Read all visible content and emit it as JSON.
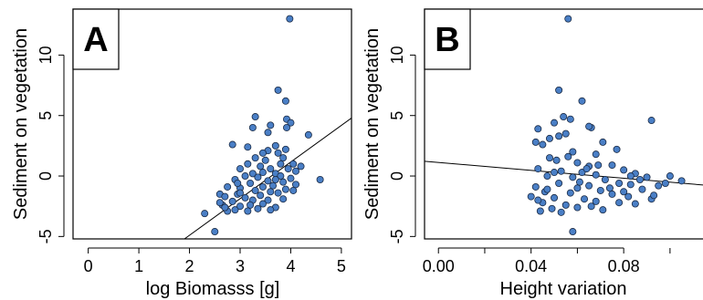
{
  "chart_data": [
    {
      "type": "scatter",
      "panel_label": "A",
      "xlabel": "log Biomasss [g]",
      "ylabel": "Sediment on vegetation",
      "xlim": [
        -0.3,
        5.2
      ],
      "ylim": [
        -5.2,
        13.8
      ],
      "xticks": [
        0,
        1,
        2,
        3,
        4,
        5
      ],
      "yticks": [
        -5,
        0,
        5,
        10
      ],
      "xtick_labels": [
        "0",
        "1",
        "2",
        "3",
        "4",
        "5"
      ],
      "ytick_labels": [
        "-5",
        "0",
        "5",
        "10"
      ],
      "regression_line": {
        "slope": 3.03,
        "intercept": -10.96
      },
      "point_color": "#4a7fc6",
      "points": [
        [
          3.98,
          13.0
        ],
        [
          3.75,
          7.1
        ],
        [
          3.9,
          6.2
        ],
        [
          3.3,
          4.9
        ],
        [
          3.92,
          4.7
        ],
        [
          4.0,
          4.4
        ],
        [
          3.92,
          4.0
        ],
        [
          3.25,
          4.0
        ],
        [
          3.6,
          4.2
        ],
        [
          3.55,
          3.6
        ],
        [
          4.35,
          3.4
        ],
        [
          2.85,
          2.6
        ],
        [
          3.15,
          2.4
        ],
        [
          3.7,
          2.5
        ],
        [
          3.9,
          2.2
        ],
        [
          3.55,
          2.1
        ],
        [
          3.75,
          1.9
        ],
        [
          3.3,
          1.5
        ],
        [
          3.5,
          1.3
        ],
        [
          3.85,
          1.5
        ],
        [
          4.05,
          1.0
        ],
        [
          3.15,
          1.0
        ],
        [
          3.4,
          0.8
        ],
        [
          3.6,
          0.6
        ],
        [
          3.0,
          0.6
        ],
        [
          3.95,
          0.6
        ],
        [
          4.1,
          0.4
        ],
        [
          3.25,
          0.2
        ],
        [
          3.45,
          0.3
        ],
        [
          3.7,
          0.2
        ],
        [
          3.8,
          0.0
        ],
        [
          4.0,
          -0.2
        ],
        [
          4.58,
          -0.3
        ],
        [
          3.1,
          0.0
        ],
        [
          3.35,
          -0.1
        ],
        [
          3.55,
          -0.4
        ],
        [
          2.9,
          -0.3
        ],
        [
          3.85,
          -0.5
        ],
        [
          4.1,
          -0.7
        ],
        [
          3.2,
          -0.6
        ],
        [
          3.65,
          -0.8
        ],
        [
          3.45,
          -0.9
        ],
        [
          2.75,
          -0.9
        ],
        [
          3.0,
          -1.0
        ],
        [
          3.9,
          -1.1
        ],
        [
          4.05,
          -1.2
        ],
        [
          3.3,
          -1.2
        ],
        [
          3.6,
          -1.3
        ],
        [
          2.6,
          -1.5
        ],
        [
          2.95,
          -1.5
        ],
        [
          3.75,
          -1.4
        ],
        [
          3.4,
          -1.6
        ],
        [
          3.1,
          -1.8
        ],
        [
          2.7,
          -1.7
        ],
        [
          3.85,
          -1.9
        ],
        [
          3.55,
          -2.0
        ],
        [
          2.85,
          -2.1
        ],
        [
          3.25,
          -2.0
        ],
        [
          2.65,
          -2.4
        ],
        [
          3.0,
          -2.5
        ],
        [
          3.45,
          -2.3
        ],
        [
          3.7,
          -2.6
        ],
        [
          2.9,
          -2.8
        ],
        [
          2.75,
          -2.9
        ],
        [
          3.2,
          -2.4
        ],
        [
          2.6,
          -2.2
        ],
        [
          3.35,
          -2.7
        ],
        [
          3.6,
          -2.8
        ],
        [
          2.7,
          -2.6
        ],
        [
          2.3,
          -3.1
        ],
        [
          2.5,
          -4.6
        ],
        [
          3.0,
          -1.4
        ],
        [
          3.7,
          -0.3
        ],
        [
          4.2,
          0.8
        ],
        [
          3.45,
          1.9
        ],
        [
          2.95,
          -0.6
        ],
        [
          3.8,
          1.0
        ],
        [
          3.15,
          -2.9
        ]
      ]
    },
    {
      "type": "scatter",
      "panel_label": "B",
      "xlabel": "Height variation",
      "ylabel": "Sediment on vegetation",
      "xlim": [
        -0.006,
        0.117
      ],
      "ylim": [
        -5.2,
        13.8
      ],
      "xticks": [
        0.0,
        0.04,
        0.08
      ],
      "yticks": [
        -5,
        0,
        5,
        10
      ],
      "xtick_labels": [
        "0.00",
        "0.04",
        "0.08"
      ],
      "ytick_labels": [
        "-5",
        "0",
        "5",
        "10"
      ],
      "regression_line": {
        "slope": -16.3,
        "intercept": 1.12
      },
      "point_color": "#4a7fc6",
      "points": [
        [
          0.056,
          13.0
        ],
        [
          0.052,
          7.1
        ],
        [
          0.062,
          6.2
        ],
        [
          0.054,
          4.9
        ],
        [
          0.057,
          4.7
        ],
        [
          0.092,
          4.6
        ],
        [
          0.05,
          4.4
        ],
        [
          0.066,
          4.0
        ],
        [
          0.065,
          4.1
        ],
        [
          0.043,
          3.9
        ],
        [
          0.055,
          3.5
        ],
        [
          0.052,
          3.3
        ],
        [
          0.048,
          3.1
        ],
        [
          0.042,
          2.8
        ],
        [
          0.071,
          2.8
        ],
        [
          0.077,
          2.2
        ],
        [
          0.045,
          2.6
        ],
        [
          0.058,
          2.0
        ],
        [
          0.068,
          1.8
        ],
        [
          0.048,
          1.5
        ],
        [
          0.051,
          1.3
        ],
        [
          0.06,
          1.1
        ],
        [
          0.065,
          0.8
        ],
        [
          0.075,
          0.9
        ],
        [
          0.043,
          0.6
        ],
        [
          0.053,
          0.4
        ],
        [
          0.062,
          0.3
        ],
        [
          0.068,
          0.1
        ],
        [
          0.08,
          0.5
        ],
        [
          0.085,
          0.2
        ],
        [
          0.047,
          0.0
        ],
        [
          0.058,
          -0.1
        ],
        [
          0.09,
          -0.1
        ],
        [
          0.1,
          0.0
        ],
        [
          0.105,
          -0.4
        ],
        [
          0.072,
          -0.3
        ],
        [
          0.078,
          -0.6
        ],
        [
          0.083,
          -0.7
        ],
        [
          0.095,
          -0.8
        ],
        [
          0.065,
          -0.8
        ],
        [
          0.052,
          -0.6
        ],
        [
          0.042,
          -0.9
        ],
        [
          0.06,
          -1.0
        ],
        [
          0.07,
          -1.2
        ],
        [
          0.088,
          -1.1
        ],
        [
          0.046,
          -1.3
        ],
        [
          0.057,
          -1.4
        ],
        [
          0.075,
          -1.5
        ],
        [
          0.082,
          -1.7
        ],
        [
          0.04,
          -1.7
        ],
        [
          0.05,
          -1.8
        ],
        [
          0.063,
          -1.9
        ],
        [
          0.092,
          -1.9
        ],
        [
          0.068,
          -2.1
        ],
        [
          0.078,
          -2.2
        ],
        [
          0.045,
          -2.2
        ],
        [
          0.055,
          -2.4
        ],
        [
          0.085,
          -2.3
        ],
        [
          0.06,
          -2.6
        ],
        [
          0.049,
          -2.7
        ],
        [
          0.071,
          -2.8
        ],
        [
          0.053,
          -3.0
        ],
        [
          0.066,
          -2.5
        ],
        [
          0.043,
          -2.0
        ],
        [
          0.058,
          -4.6
        ],
        [
          0.074,
          -1.0
        ],
        [
          0.087,
          -0.3
        ],
        [
          0.064,
          0.6
        ],
        [
          0.047,
          -1.1
        ],
        [
          0.08,
          -1.3
        ],
        [
          0.093,
          -1.6
        ],
        [
          0.098,
          -0.6
        ],
        [
          0.056,
          1.6
        ],
        [
          0.069,
          0.9
        ],
        [
          0.044,
          -2.9
        ],
        [
          0.083,
          0.0
        ],
        [
          0.061,
          -0.5
        ],
        [
          0.05,
          0.3
        ]
      ]
    }
  ]
}
